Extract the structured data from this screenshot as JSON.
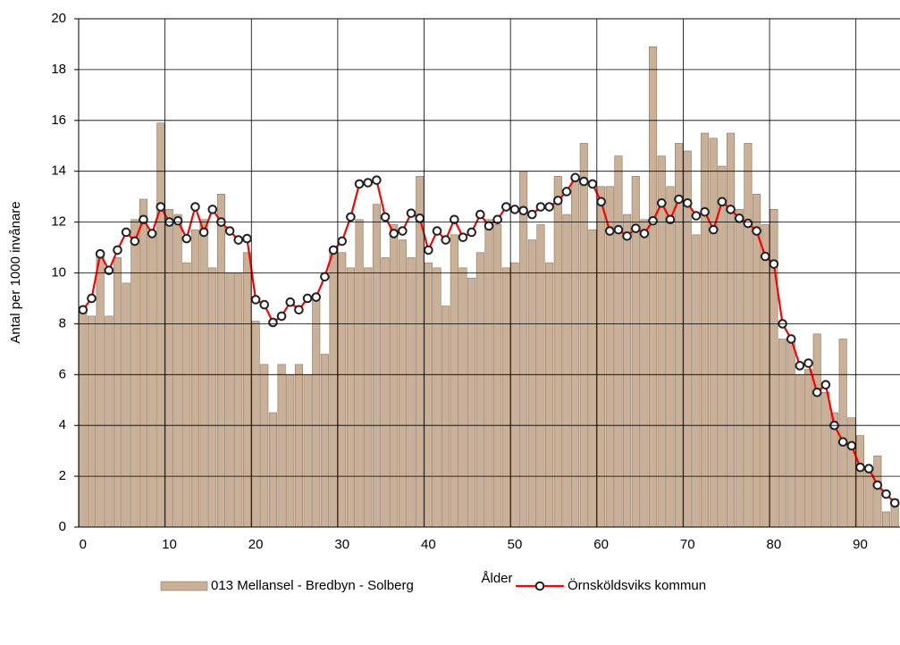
{
  "chart_data": {
    "type": "bar-line",
    "x_label": "Ålder",
    "y_label": "Antal per 1000 invånare",
    "categories": [
      "0",
      null,
      null,
      null,
      null,
      null,
      null,
      null,
      null,
      null,
      "10",
      null,
      null,
      null,
      null,
      null,
      null,
      null,
      null,
      null,
      "20",
      null,
      null,
      null,
      null,
      null,
      null,
      null,
      null,
      null,
      "30",
      null,
      null,
      null,
      null,
      null,
      null,
      null,
      null,
      null,
      "40",
      null,
      null,
      null,
      null,
      null,
      null,
      null,
      null,
      null,
      "50",
      null,
      null,
      null,
      null,
      null,
      null,
      null,
      null,
      null,
      "60",
      null,
      null,
      null,
      null,
      null,
      null,
      null,
      null,
      null,
      "70",
      null,
      null,
      null,
      null,
      null,
      null,
      null,
      null,
      null,
      "80",
      null,
      null,
      null,
      null,
      null,
      null,
      null,
      null,
      null,
      "90",
      null,
      null,
      null,
      null
    ],
    "ylim": [
      0,
      20
    ],
    "yticks": [
      0,
      2,
      4,
      6,
      8,
      10,
      12,
      14,
      16,
      18,
      20
    ],
    "grid": true,
    "legend": "bottom",
    "series": [
      {
        "name": "013 Mellansel - Bredbyn - Solberg",
        "type": "bar",
        "color": "#c9b096",
        "values": [
          8.6,
          8.3,
          10.7,
          8.3,
          10.6,
          9.6,
          12.1,
          12.9,
          11.6,
          15.9,
          12.5,
          12.3,
          10.4,
          11.7,
          12.1,
          10.2,
          13.1,
          10.0,
          10.0,
          10.8,
          8.1,
          6.4,
          4.5,
          6.4,
          6.0,
          6.4,
          6.0,
          9.0,
          6.8,
          11.0,
          10.8,
          10.2,
          12.1,
          10.2,
          12.7,
          10.6,
          11.9,
          11.3,
          10.6,
          13.8,
          10.4,
          10.2,
          8.7,
          11.5,
          10.2,
          9.8,
          10.8,
          12.1,
          11.9,
          10.2,
          10.4,
          14.0,
          11.3,
          11.9,
          10.4,
          13.8,
          12.3,
          13.6,
          15.1,
          11.7,
          13.4,
          13.4,
          14.6,
          12.3,
          13.8,
          12.1,
          18.9,
          14.6,
          13.4,
          15.1,
          14.8,
          11.5,
          15.5,
          15.3,
          14.2,
          15.5,
          12.5,
          15.1,
          13.1,
          11.9,
          12.5,
          7.4,
          7.4,
          6.0,
          6.2,
          7.6,
          5.3,
          4.5,
          7.4,
          4.3,
          3.6,
          2.3,
          2.8,
          0.6,
          1.1
        ]
      },
      {
        "name": "Örnsköldsviks kommun",
        "type": "line",
        "color": "#ff0000",
        "values": [
          8.55,
          9.0,
          10.75,
          10.1,
          10.9,
          11.6,
          11.25,
          12.1,
          11.55,
          12.6,
          12.0,
          12.05,
          11.35,
          12.6,
          11.6,
          12.5,
          12.0,
          11.65,
          11.3,
          11.35,
          8.95,
          8.75,
          8.05,
          8.3,
          8.85,
          8.55,
          9.0,
          9.05,
          9.85,
          10.9,
          11.25,
          12.2,
          13.5,
          13.55,
          13.65,
          12.2,
          11.55,
          11.65,
          12.35,
          12.15,
          10.9,
          11.65,
          11.3,
          12.1,
          11.4,
          11.6,
          12.3,
          11.85,
          12.1,
          12.6,
          12.5,
          12.45,
          12.3,
          12.6,
          12.6,
          12.85,
          13.2,
          13.75,
          13.6,
          13.5,
          12.8,
          11.65,
          11.7,
          11.45,
          11.75,
          11.55,
          12.05,
          12.75,
          12.1,
          12.9,
          12.75,
          12.25,
          12.4,
          11.7,
          12.8,
          12.5,
          12.15,
          11.95,
          11.65,
          10.65,
          10.35,
          8.0,
          7.4,
          6.35,
          6.45,
          5.3,
          5.6,
          4.0,
          3.35,
          3.2,
          2.35,
          2.3,
          1.65,
          1.3,
          0.95
        ]
      }
    ]
  }
}
